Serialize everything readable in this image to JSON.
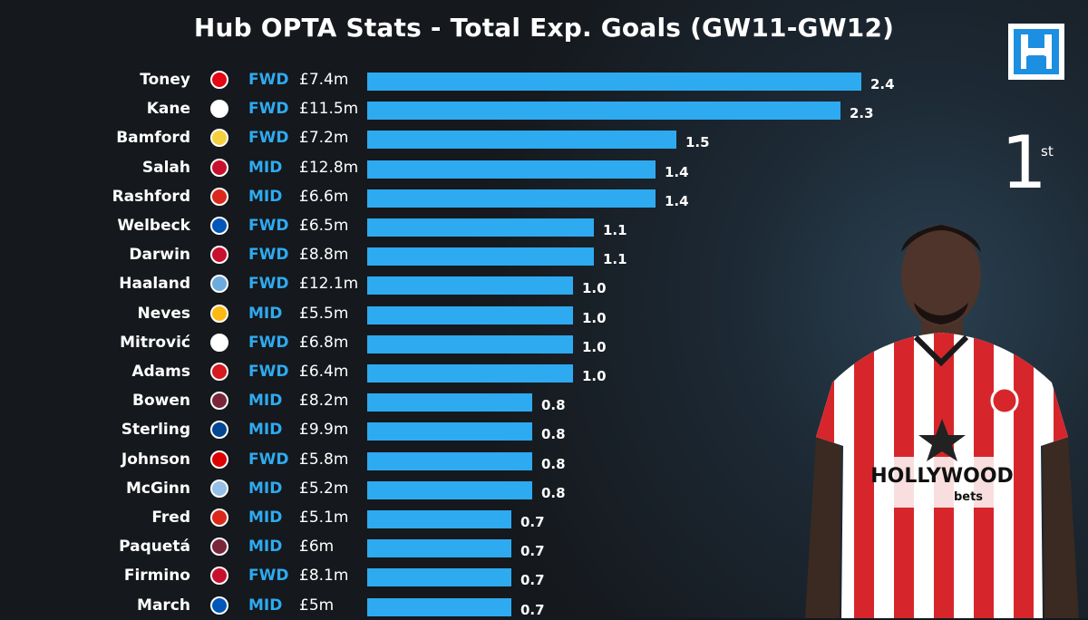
{
  "title": "Hub OPTA Stats - Total Exp. Goals (GW11-GW12)",
  "rank": {
    "number": "1",
    "suffix": "st"
  },
  "sponsor_text": {
    "line1": "HOLLYWOOD",
    "line2": "bets"
  },
  "colors": {
    "bar": "#2eaaf0",
    "position": "#2eaaf0",
    "background": "#15181c"
  },
  "chart_data": {
    "type": "bar",
    "orientation": "horizontal",
    "title": "Hub OPTA Stats - Total Exp. Goals (GW11-GW12)",
    "xlim": [
      0,
      2.4
    ],
    "grid": false,
    "categories": [
      "Toney",
      "Kane",
      "Bamford",
      "Salah",
      "Rashford",
      "Welbeck",
      "Darwin",
      "Haaland",
      "Neves",
      "Mitrović",
      "Adams",
      "Bowen",
      "Sterling",
      "Johnson",
      "McGinn",
      "Fred",
      "Paquetá",
      "Firmino",
      "March"
    ],
    "values": [
      2.4,
      2.3,
      1.5,
      1.4,
      1.4,
      1.1,
      1.1,
      1.0,
      1.0,
      1.0,
      1.0,
      0.8,
      0.8,
      0.8,
      0.8,
      0.7,
      0.7,
      0.7,
      0.7
    ],
    "rows": [
      {
        "name": "Toney",
        "pos": "FWD",
        "price": "£7.4m",
        "value": 2.4,
        "label": "2.4",
        "crest": "brentford",
        "crest_color": "#e30613"
      },
      {
        "name": "Kane",
        "pos": "FWD",
        "price": "£11.5m",
        "value": 2.3,
        "label": "2.3",
        "crest": "tottenham",
        "crest_color": "#ffffff"
      },
      {
        "name": "Bamford",
        "pos": "FWD",
        "price": "£7.2m",
        "value": 1.5,
        "label": "1.5",
        "crest": "leeds",
        "crest_color": "#f4d03f"
      },
      {
        "name": "Salah",
        "pos": "MID",
        "price": "£12.8m",
        "value": 1.4,
        "label": "1.4",
        "crest": "liverpool",
        "crest_color": "#c8102e"
      },
      {
        "name": "Rashford",
        "pos": "MID",
        "price": "£6.6m",
        "value": 1.4,
        "label": "1.4",
        "crest": "man-utd",
        "crest_color": "#da291c"
      },
      {
        "name": "Welbeck",
        "pos": "FWD",
        "price": "£6.5m",
        "value": 1.1,
        "label": "1.1",
        "crest": "brighton",
        "crest_color": "#0057b8"
      },
      {
        "name": "Darwin",
        "pos": "FWD",
        "price": "£8.8m",
        "value": 1.1,
        "label": "1.1",
        "crest": "liverpool",
        "crest_color": "#c8102e"
      },
      {
        "name": "Haaland",
        "pos": "FWD",
        "price": "£12.1m",
        "value": 1.0,
        "label": "1.0",
        "crest": "man-city",
        "crest_color": "#6cabdd"
      },
      {
        "name": "Neves",
        "pos": "MID",
        "price": "£5.5m",
        "value": 1.0,
        "label": "1.0",
        "crest": "wolves",
        "crest_color": "#fdb913"
      },
      {
        "name": "Mitrović",
        "pos": "FWD",
        "price": "£6.8m",
        "value": 1.0,
        "label": "1.0",
        "crest": "fulham",
        "crest_color": "#ffffff"
      },
      {
        "name": "Adams",
        "pos": "FWD",
        "price": "£6.4m",
        "value": 1.0,
        "label": "1.0",
        "crest": "southampton",
        "crest_color": "#d71920"
      },
      {
        "name": "Bowen",
        "pos": "MID",
        "price": "£8.2m",
        "value": 0.8,
        "label": "0.8",
        "crest": "west-ham",
        "crest_color": "#7a263a"
      },
      {
        "name": "Sterling",
        "pos": "MID",
        "price": "£9.9m",
        "value": 0.8,
        "label": "0.8",
        "crest": "chelsea",
        "crest_color": "#034694"
      },
      {
        "name": "Johnson",
        "pos": "FWD",
        "price": "£5.8m",
        "value": 0.8,
        "label": "0.8",
        "crest": "nottm-forest",
        "crest_color": "#dd0000"
      },
      {
        "name": "McGinn",
        "pos": "MID",
        "price": "£5.2m",
        "value": 0.8,
        "label": "0.8",
        "crest": "aston-villa",
        "crest_color": "#95bfe5"
      },
      {
        "name": "Fred",
        "pos": "MID",
        "price": "£5.1m",
        "value": 0.7,
        "label": "0.7",
        "crest": "man-utd",
        "crest_color": "#da291c"
      },
      {
        "name": "Paquetá",
        "pos": "MID",
        "price": "£6m",
        "value": 0.7,
        "label": "0.7",
        "crest": "west-ham",
        "crest_color": "#7a263a"
      },
      {
        "name": "Firmino",
        "pos": "FWD",
        "price": "£8.1m",
        "value": 0.7,
        "label": "0.7",
        "crest": "liverpool",
        "crest_color": "#c8102e"
      },
      {
        "name": "March",
        "pos": "MID",
        "price": "£5m",
        "value": 0.7,
        "label": "0.7",
        "crest": "brighton",
        "crest_color": "#0057b8"
      }
    ]
  }
}
